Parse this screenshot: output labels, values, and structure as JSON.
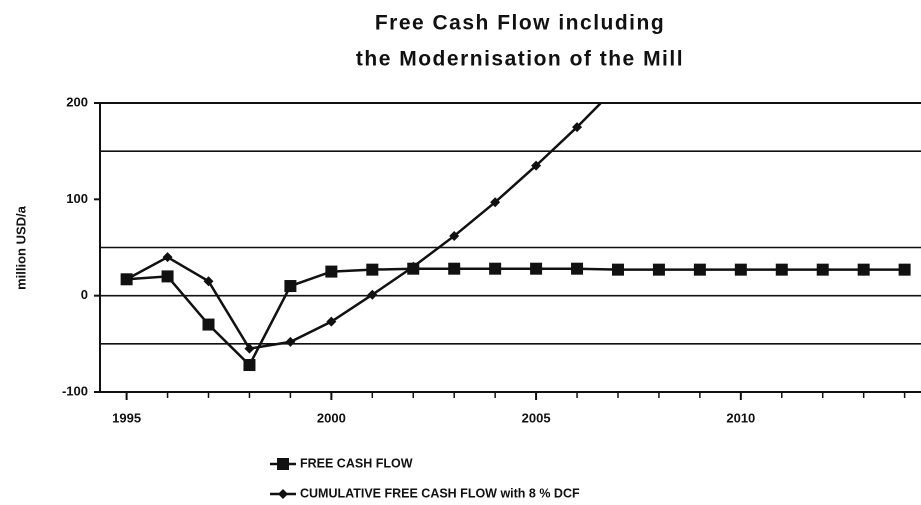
{
  "chart_data": {
    "type": "line",
    "title": [
      "Free Cash Flow including",
      "the Modernisation of the Mill"
    ],
    "y_label": "million USD/a",
    "x": [
      1995,
      1996,
      1997,
      1998,
      1999,
      2000,
      2001,
      2002,
      2003,
      2004,
      2005,
      2006,
      2007,
      2008,
      2009,
      2010,
      2011,
      2012,
      2013,
      2014
    ],
    "series": [
      {
        "name": "FREE CASH FLOW",
        "color": "#111111",
        "marker": "square",
        "values": [
          17,
          20,
          -30,
          -72,
          10,
          25,
          27,
          28,
          28,
          28,
          28,
          28,
          27,
          27,
          27,
          27,
          27,
          27,
          27,
          27
        ]
      },
      {
        "name": "CUMULATIVE FREE CASH FLOW with 8 % DCF",
        "color": "#111111",
        "marker": "diamond",
        "values": [
          17,
          40,
          15,
          -55,
          -48,
          -27,
          1,
          30,
          62,
          97,
          135,
          175,
          218,
          null,
          null,
          null,
          null,
          null,
          null,
          null
        ]
      }
    ],
    "xlim": [
      1994.35,
      2014.4
    ],
    "xticks": [
      1995,
      2000,
      2005,
      2010
    ],
    "ylim": [
      -100,
      200
    ],
    "yticks": [
      -100,
      0,
      100,
      200
    ],
    "grid_lines": [
      -50,
      0,
      50,
      150
    ],
    "legend": "bottom"
  }
}
